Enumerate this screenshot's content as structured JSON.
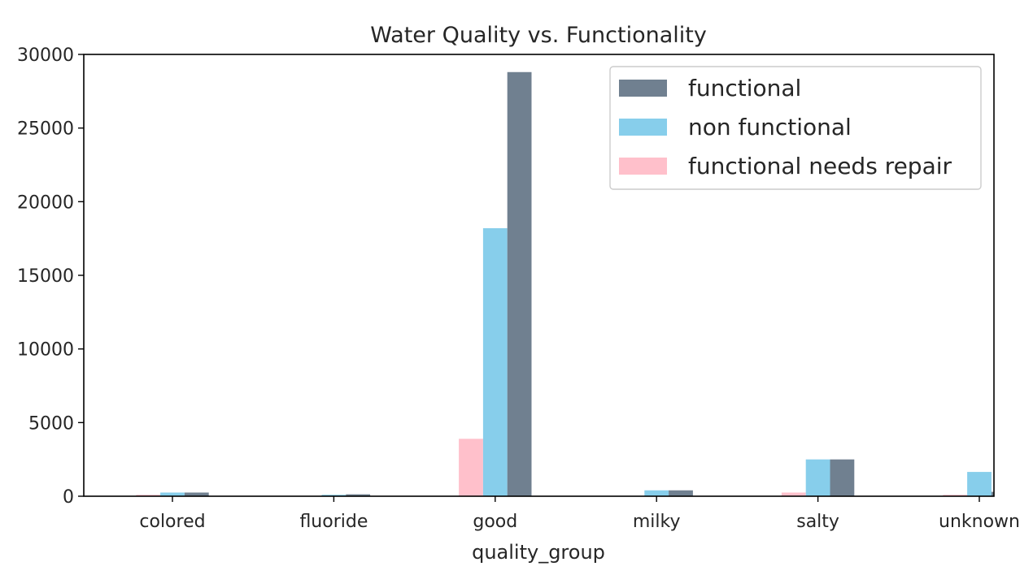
{
  "chart_data": {
    "type": "bar",
    "title": "Water Quality vs. Functionality",
    "xlabel": "quality_group",
    "ylabel": "",
    "ylim": [
      0,
      30000
    ],
    "yticks": [
      0,
      5000,
      10000,
      15000,
      20000,
      25000,
      30000
    ],
    "categories": [
      "colored",
      "fluoride",
      "good",
      "milky",
      "salty",
      "unknown"
    ],
    "series": [
      {
        "name": "functional needs repair",
        "color": "#FFC0CB",
        "values": [
          100,
          10,
          3900,
          15,
          250,
          100
        ]
      },
      {
        "name": "non functional",
        "color": "#87CEEB",
        "values": [
          250,
          100,
          18200,
          400,
          2500,
          1650
        ]
      },
      {
        "name": "functional",
        "color": "#708090",
        "values": [
          250,
          130,
          28800,
          400,
          2500,
          300
        ]
      }
    ],
    "legend": {
      "position": "top-right",
      "order": [
        "functional",
        "non functional",
        "functional needs repair"
      ]
    },
    "grid": false
  }
}
